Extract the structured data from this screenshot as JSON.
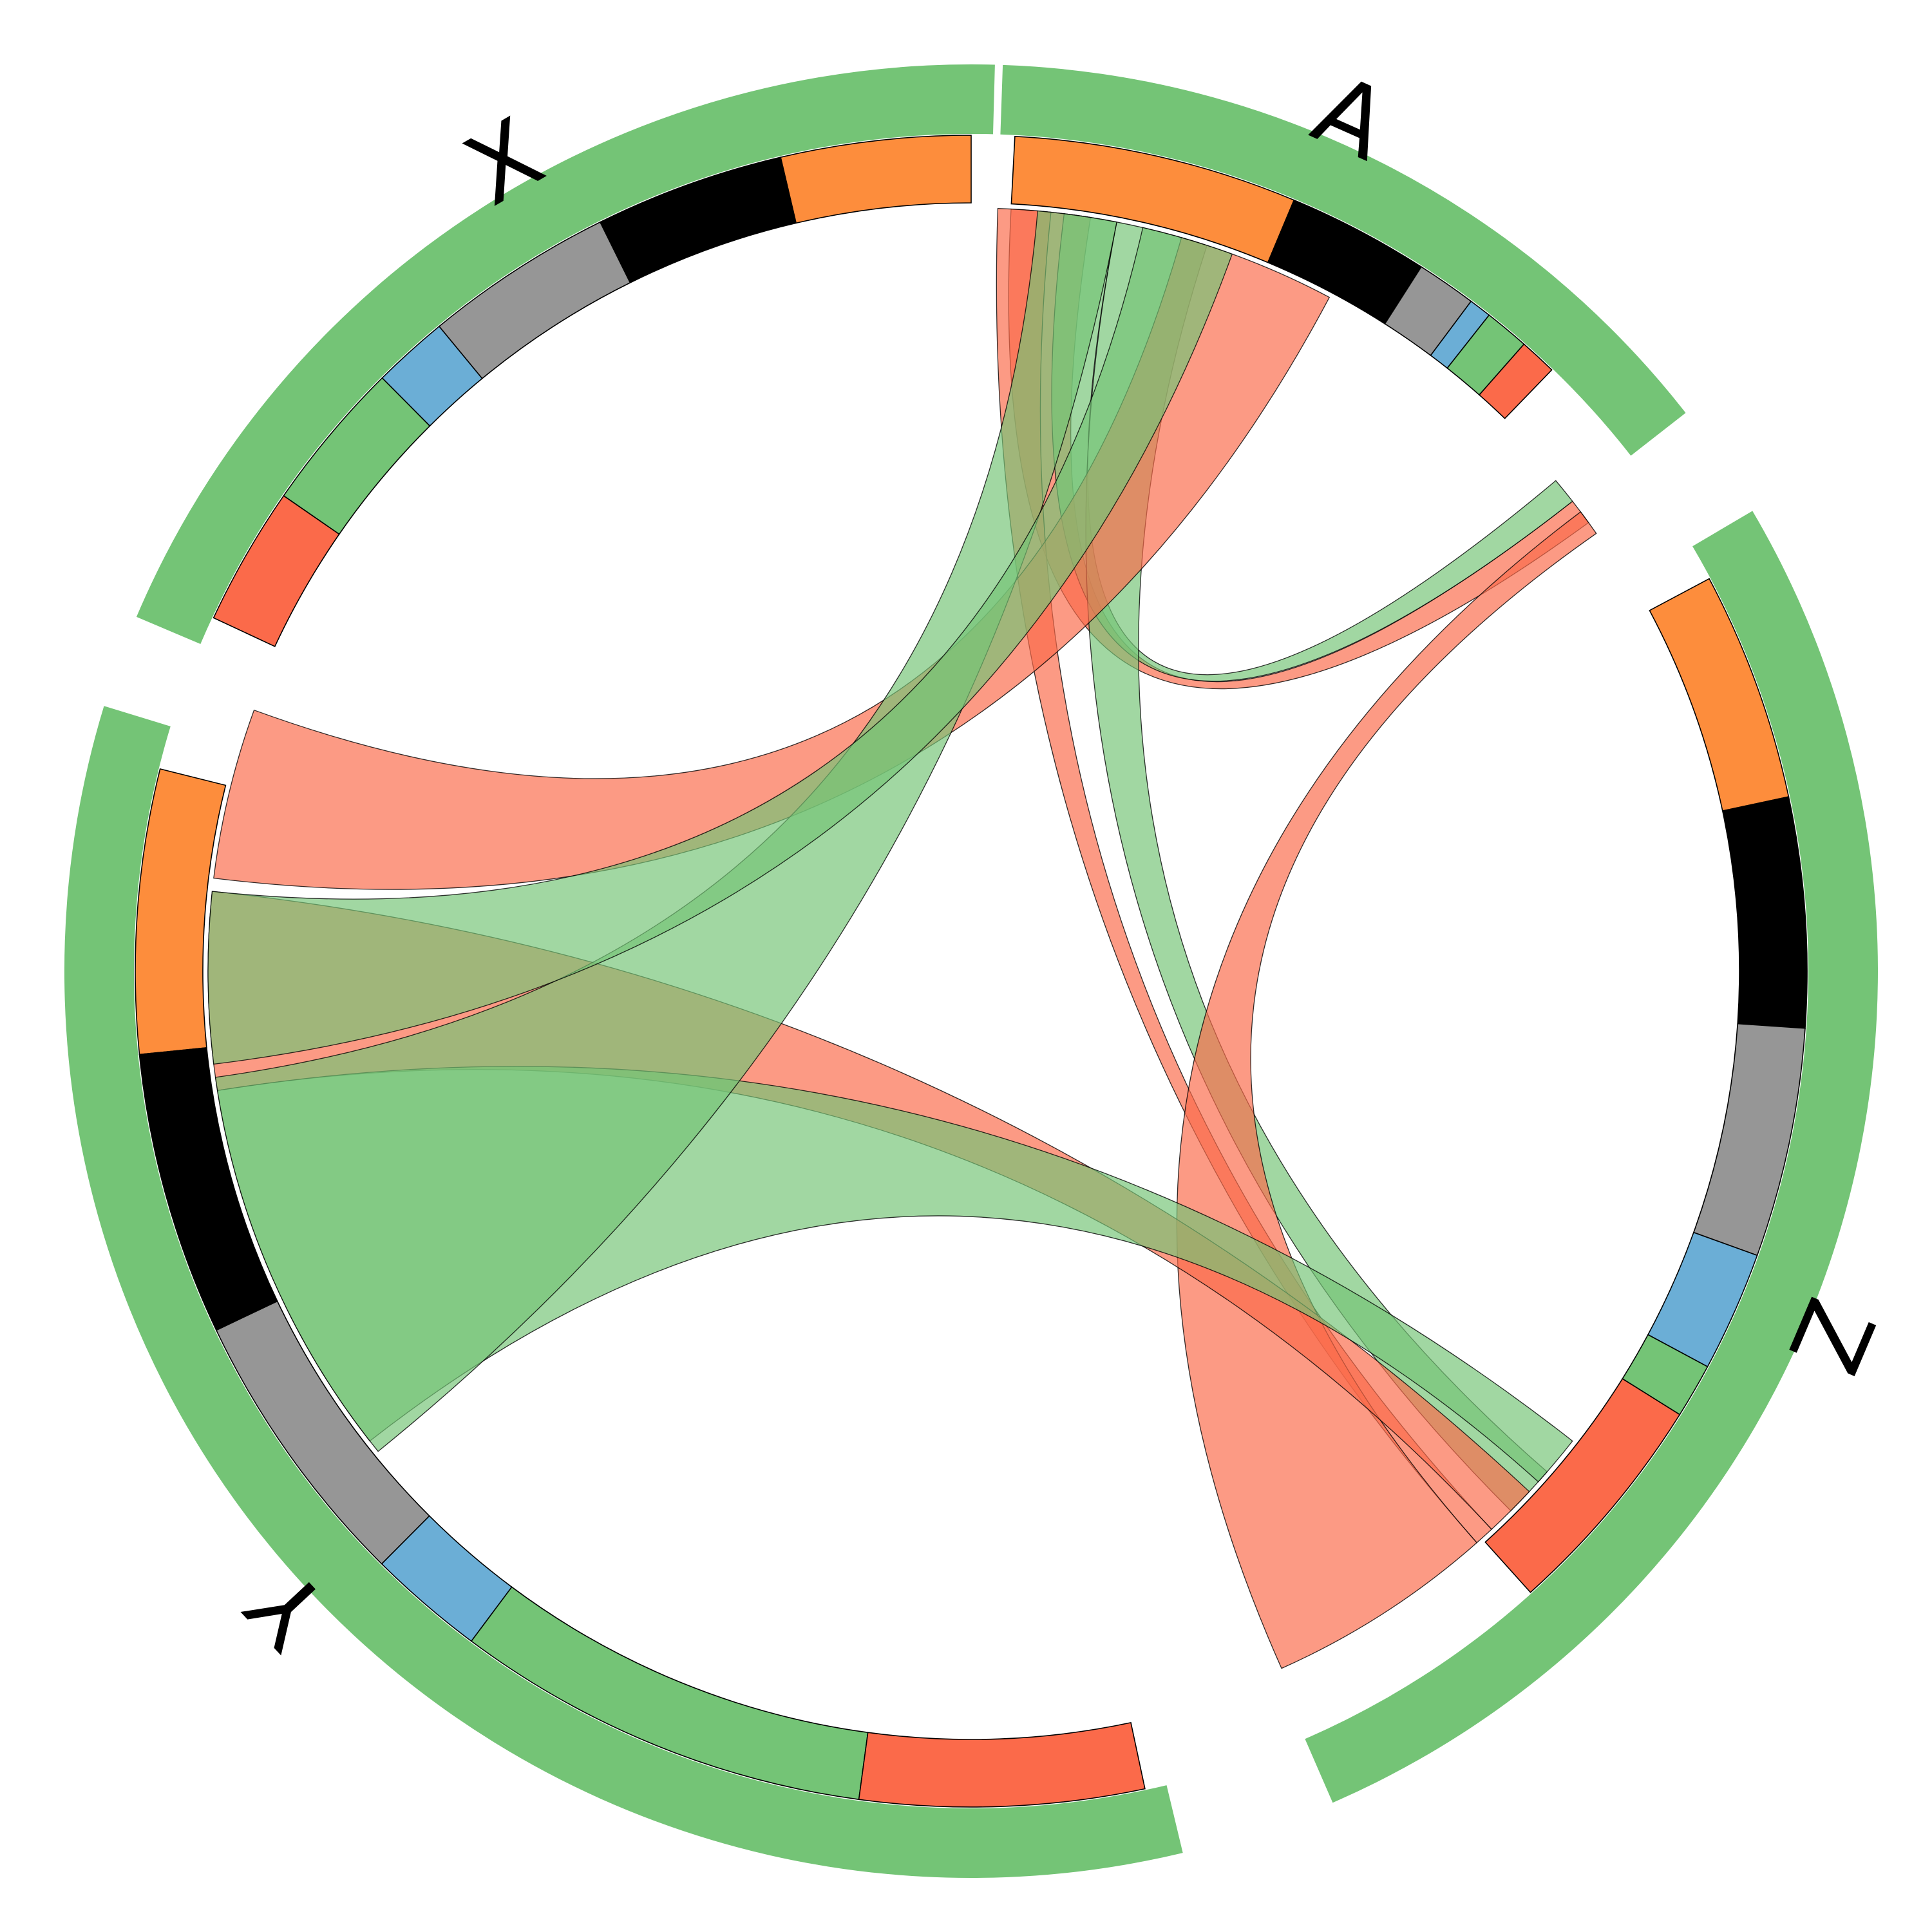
{
  "diagram": {
    "type": "chord",
    "groups": [
      {
        "name": "A",
        "color": "#74c476",
        "subsegments": [
          {
            "color": "#fd8d3c",
            "value": 0.38
          },
          {
            "color": "#000000",
            "value": 0.19
          },
          {
            "color": "#969696",
            "value": 0.08
          },
          {
            "color": "#6baed6",
            "value": 0.03
          },
          {
            "color": "#74c476",
            "value": 0.06
          },
          {
            "color": "#fb6a4a",
            "value": 0.05
          }
        ]
      },
      {
        "name": "Z",
        "color": "#74c476",
        "subsegments": [
          {
            "color": "#fd8d3c",
            "value": 0.21
          },
          {
            "color": "#000000",
            "value": 0.21
          },
          {
            "color": "#969696",
            "value": 0.21
          },
          {
            "color": "#6baed6",
            "value": 0.11
          },
          {
            "color": "#74c476",
            "value": 0.05
          },
          {
            "color": "#fb6a4a",
            "value": 0.21
          }
        ]
      },
      {
        "name": "Y",
        "color": "#74c476",
        "subsegments": [
          {
            "color": "#fd8d3c",
            "value": 0.17
          },
          {
            "color": "#000000",
            "value": 0.17
          },
          {
            "color": "#969696",
            "value": 0.17
          },
          {
            "color": "#6baed6",
            "value": 0.07
          },
          {
            "color": "#74c476",
            "value": 0.25
          },
          {
            "color": "#fb6a4a",
            "value": 0.17
          }
        ]
      },
      {
        "name": "X",
        "color": "#74c476",
        "subsegments": [
          {
            "color": "#fd8d3c",
            "value": 0.15
          },
          {
            "color": "#000000",
            "value": 0.15
          },
          {
            "color": "#969696",
            "value": 0.15
          },
          {
            "color": "#6baed6",
            "value": 0.06
          },
          {
            "color": "#74c476",
            "value": 0.12
          },
          {
            "color": "#fb6a4a",
            "value": 0.11
          }
        ]
      }
    ],
    "ribbons": [
      {
        "color": "#fb6a4a",
        "source": "A",
        "target": "Z"
      },
      {
        "color": "#74c476",
        "source": "A",
        "target": "Z"
      },
      {
        "color": "#74c476",
        "source": "A",
        "target": "X"
      },
      {
        "color": "#fb6a4a",
        "source": "A",
        "target": "X"
      },
      {
        "color": "#fb6a4a",
        "source": "Z",
        "target": "Y"
      },
      {
        "color": "#fb6a4a",
        "source": "Z",
        "target": "Y"
      },
      {
        "color": "#74c476",
        "source": "Z",
        "target": "Y"
      },
      {
        "color": "#fb6a4a",
        "source": "Y",
        "target": "X"
      },
      {
        "color": "#74c476",
        "source": "Y",
        "target": "X"
      },
      {
        "color": "#74c476",
        "source": "Y",
        "target": "X"
      }
    ]
  }
}
